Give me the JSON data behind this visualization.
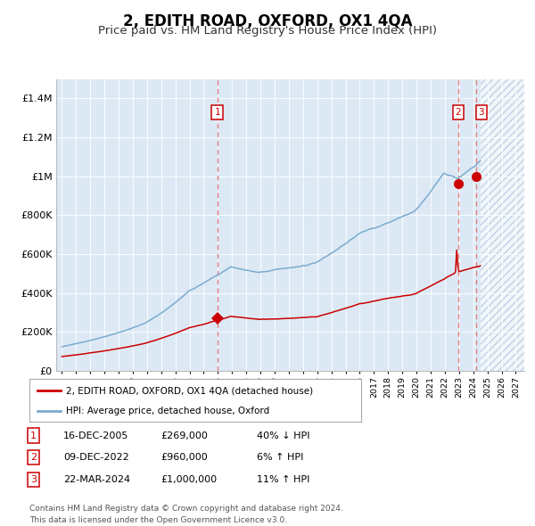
{
  "title": "2, EDITH ROAD, OXFORD, OX1 4QA",
  "subtitle": "Price paid vs. HM Land Registry's House Price Index (HPI)",
  "title_fontsize": 12,
  "subtitle_fontsize": 9.5,
  "background_color": "#ffffff",
  "plot_bg_color": "#dce9f5",
  "grid_color": "#ffffff",
  "red_line_color": "#cc0000",
  "blue_line_color": "#7aabcf",
  "red_dot_color": "#cc0000",
  "dashed_line_color": "#e88080",
  "ylim": [
    0,
    1500000
  ],
  "yticks": [
    0,
    200000,
    400000,
    600000,
    800000,
    1000000,
    1200000,
    1400000
  ],
  "ytick_labels": [
    "£0",
    "£200K",
    "£400K",
    "£600K",
    "£800K",
    "£1M",
    "£1.2M",
    "£1.4M"
  ],
  "year_start": 1995,
  "year_end": 2027,
  "trans1_year": 2005.958,
  "trans1_price": 269000,
  "trans2_year": 2022.94,
  "trans2_price": 960000,
  "trans3_year": 2024.22,
  "trans3_price": 1000000,
  "legend_entries": [
    "2, EDITH ROAD, OXFORD, OX1 4QA (detached house)",
    "HPI: Average price, detached house, Oxford"
  ],
  "footer_text": "Contains HM Land Registry data © Crown copyright and database right 2024.\nThis data is licensed under the Open Government Licence v3.0.",
  "table_rows": [
    [
      "1",
      "16-DEC-2005",
      "£269,000",
      "40% ↓ HPI"
    ],
    [
      "2",
      "09-DEC-2022",
      "£960,000",
      "6% ↑ HPI"
    ],
    [
      "3",
      "22-MAR-2024",
      "£1,000,000",
      "11% ↑ HPI"
    ]
  ]
}
